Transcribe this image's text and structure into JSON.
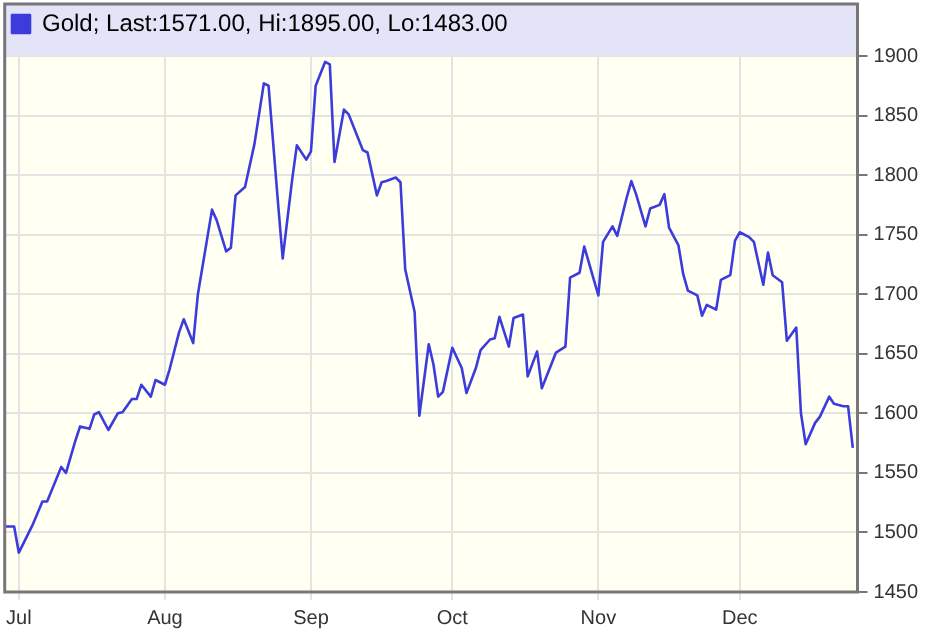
{
  "chart_data": {
    "type": "line",
    "x": [
      "--06-28",
      "--06-30",
      "--07-01",
      "--07-04",
      "--07-06",
      "--07-07",
      "--07-10",
      "--07-11",
      "--07-13",
      "--07-14",
      "--07-16",
      "--07-17",
      "--07-18",
      "--07-20",
      "--07-22",
      "--07-23",
      "--07-25",
      "--07-26",
      "--07-27",
      "--07-29",
      "--07-30",
      "--08-01",
      "--08-02",
      "--08-04",
      "--08-05",
      "--08-07",
      "--08-08",
      "--08-11",
      "--08-12",
      "--08-14",
      "--08-15",
      "--08-16",
      "--08-18",
      "--08-20",
      "--08-22",
      "--08-23",
      "--08-25",
      "--08-26",
      "--08-28",
      "--08-29",
      "--08-31",
      "--09-01",
      "--09-02",
      "--09-04",
      "--09-05",
      "--09-06",
      "--09-08",
      "--09-09",
      "--09-12",
      "--09-13",
      "--09-15",
      "--09-16",
      "--09-17",
      "--09-19",
      "--09-20",
      "--09-21",
      "--09-23",
      "--09-24",
      "--09-26",
      "--09-27",
      "--09-28",
      "--09-29",
      "--10-01",
      "--10-03",
      "--10-04",
      "--10-06",
      "--10-07",
      "--10-09",
      "--10-10",
      "--10-11",
      "--10-13",
      "--10-14",
      "--10-16",
      "--10-17",
      "--10-19",
      "--10-20",
      "--10-22",
      "--10-23",
      "--10-25",
      "--10-26",
      "--10-28",
      "--10-29",
      "--11-01",
      "--11-02",
      "--11-04",
      "--11-05",
      "--11-07",
      "--11-08",
      "--11-09",
      "--11-11",
      "--11-12",
      "--11-14",
      "--11-15",
      "--11-16",
      "--11-18",
      "--11-19",
      "--11-20",
      "--11-22",
      "--11-23",
      "--11-24",
      "--11-26",
      "--11-27",
      "--11-29",
      "--11-30",
      "--12-01",
      "--12-03",
      "--12-04",
      "--12-06",
      "--12-07",
      "--12-08",
      "--12-10",
      "--12-11",
      "--12-13",
      "--12-14",
      "--12-15",
      "--12-17",
      "--12-18",
      "--12-20",
      "--12-21",
      "--12-23",
      "--12-24",
      "--12-25"
    ],
    "series": [
      {
        "name": "Gold; Last:1571.00, Hi:1895.00, Lo:1483.00",
        "color": "#3c3cdc",
        "values": [
          1505,
          1505,
          1483,
          1507,
          1526,
          1526,
          1555,
          1550,
          1577,
          1589,
          1587,
          1599,
          1601,
          1586,
          1600,
          1601,
          1612,
          1612,
          1624,
          1614,
          1628,
          1624,
          1637,
          1668,
          1679,
          1659,
          1700,
          1771,
          1762,
          1736,
          1739,
          1783,
          1790,
          1826,
          1877,
          1875,
          1777,
          1730,
          1796,
          1825,
          1813,
          1820,
          1875,
          1895,
          1893,
          1811,
          1855,
          1851,
          1821,
          1819,
          1783,
          1794,
          1795,
          1798,
          1794,
          1721,
          1685,
          1598,
          1658,
          1641,
          1614,
          1618,
          1655,
          1638,
          1617,
          1638,
          1653,
          1662,
          1663,
          1681,
          1656,
          1680,
          1683,
          1631,
          1652,
          1621,
          1641,
          1651,
          1656,
          1714,
          1718,
          1740,
          1699,
          1744,
          1757,
          1749,
          1781,
          1795,
          1784,
          1757,
          1772,
          1775,
          1784,
          1756,
          1741,
          1717,
          1703,
          1699,
          1682,
          1691,
          1687,
          1712,
          1716,
          1745,
          1752,
          1748,
          1744,
          1708,
          1735,
          1716,
          1710,
          1661,
          1672,
          1600,
          1574,
          1592,
          1597,
          1614,
          1608,
          1606,
          1606,
          1571
        ]
      }
    ],
    "xlim": [
      "--06-28",
      "--12-26"
    ],
    "xticks": [
      {
        "value": "--07-01",
        "label": "Jul"
      },
      {
        "value": "--08-01",
        "label": "Aug"
      },
      {
        "value": "--09-01",
        "label": "Sep"
      },
      {
        "value": "--10-01",
        "label": "Oct"
      },
      {
        "value": "--11-01",
        "label": "Nov"
      },
      {
        "value": "--12-01",
        "label": "Dec"
      }
    ],
    "ylim": [
      1450,
      1900
    ],
    "yticks": [
      1450,
      1500,
      1550,
      1600,
      1650,
      1700,
      1750,
      1800,
      1850,
      1900
    ],
    "grid": true,
    "legend": "top left",
    "marker": "none",
    "line_style": "solid"
  }
}
